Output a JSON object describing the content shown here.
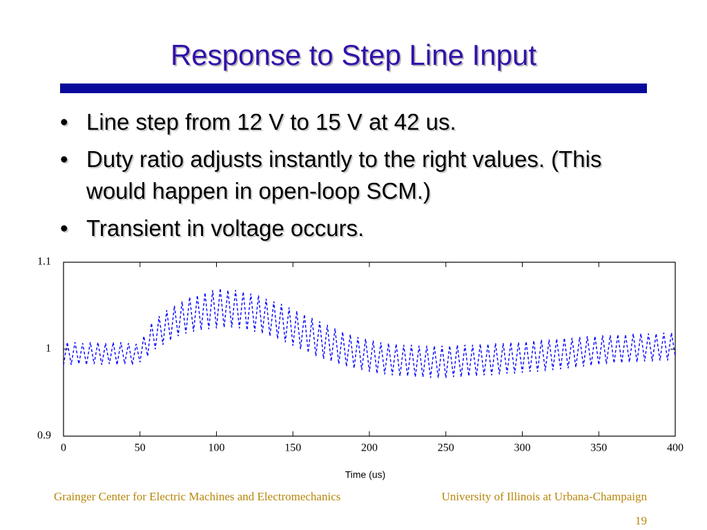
{
  "slide": {
    "title": "Response to Step Line Input",
    "bullets": [
      "Line step from 12 V to 15 V at 42 us.",
      "Duty ratio adjusts instantly to the right values. (This would happen in open-loop SCM.)",
      "Transient in voltage occurs."
    ],
    "footer_left": "Grainger Center for Electric Machines and Electromechanics",
    "footer_right": "University of Illinois at Urbana-Champaign",
    "page_number": "19"
  },
  "chart_data": {
    "type": "line",
    "xlabel": "Time (us)",
    "color": "#0000ff",
    "line_style": "dashed",
    "xlim": [
      0,
      400
    ],
    "xticks": [
      0,
      50,
      100,
      150,
      200,
      250,
      300,
      350,
      400
    ],
    "ylim": [
      0.9,
      1.1
    ],
    "yticks": [
      0.9,
      1,
      1.1
    ],
    "x": [
      0,
      2.5,
      5,
      7.5,
      10,
      12.5,
      15,
      17.5,
      20,
      22.5,
      25,
      27.5,
      30,
      32.5,
      35,
      37.5,
      40,
      42.5,
      45,
      47.5,
      50,
      52.5,
      55,
      57.5,
      60,
      62.5,
      65,
      67.5,
      70,
      72.5,
      75,
      77.5,
      80,
      82.5,
      85,
      87.5,
      90,
      92.5,
      95,
      97.5,
      100,
      102.5,
      105,
      107.5,
      110,
      112.5,
      115,
      117.5,
      120,
      122.5,
      125,
      127.5,
      130,
      132.5,
      135,
      137.5,
      140,
      142.5,
      145,
      147.5,
      150,
      152.5,
      155,
      157.5,
      160,
      162.5,
      165,
      167.5,
      170,
      172.5,
      175,
      177.5,
      180,
      182.5,
      185,
      187.5,
      190,
      192.5,
      195,
      197.5,
      200,
      202.5,
      205,
      207.5,
      210,
      212.5,
      215,
      217.5,
      220,
      222.5,
      225,
      227.5,
      230,
      232.5,
      235,
      237.5,
      240,
      242.5,
      245,
      247.5,
      250,
      252.5,
      255,
      257.5,
      260,
      262.5,
      265,
      267.5,
      270,
      272.5,
      275,
      277.5,
      280,
      282.5,
      285,
      287.5,
      290,
      292.5,
      295,
      297.5,
      300,
      302.5,
      305,
      307.5,
      310,
      312.5,
      315,
      317.5,
      320,
      322.5,
      325,
      327.5,
      330,
      332.5,
      335,
      337.5,
      340,
      342.5,
      345,
      347.5,
      350,
      352.5,
      355,
      357.5,
      360,
      362.5,
      365,
      367.5,
      370,
      372.5,
      375,
      377.5,
      380,
      382.5,
      385,
      387.5,
      390,
      392.5,
      395,
      397.5,
      400
    ],
    "values": [
      0.982,
      1.008,
      0.982,
      1.008,
      0.983,
      1.007,
      0.982,
      1.008,
      0.983,
      1.008,
      0.982,
      1.007,
      0.983,
      1.008,
      0.982,
      1.008,
      0.983,
      1.007,
      0.982,
      1.006,
      0.985,
      1.015,
      0.992,
      1.03,
      1.0,
      1.038,
      1.005,
      1.045,
      1.01,
      1.05,
      1.015,
      1.055,
      1.018,
      1.06,
      1.02,
      1.062,
      1.022,
      1.065,
      1.023,
      1.068,
      1.024,
      1.07,
      1.025,
      1.068,
      1.025,
      1.068,
      1.024,
      1.066,
      1.022,
      1.064,
      1.02,
      1.062,
      1.018,
      1.058,
      1.015,
      1.055,
      1.012,
      1.052,
      1.008,
      1.048,
      1.004,
      1.044,
      1.0,
      1.04,
      0.996,
      1.036,
      0.992,
      1.032,
      0.989,
      1.028,
      0.986,
      1.024,
      0.983,
      1.02,
      0.98,
      1.017,
      0.978,
      1.014,
      0.976,
      1.012,
      0.974,
      1.01,
      0.972,
      1.008,
      0.971,
      1.007,
      0.97,
      1.006,
      0.969,
      1.005,
      0.969,
      1.005,
      0.968,
      1.004,
      0.968,
      1.004,
      0.967,
      1.004,
      0.967,
      1.004,
      0.967,
      1.004,
      0.968,
      1.005,
      0.968,
      1.005,
      0.969,
      1.005,
      0.969,
      1.006,
      0.97,
      1.006,
      0.97,
      1.007,
      0.971,
      1.007,
      0.972,
      1.008,
      0.972,
      1.008,
      0.973,
      1.009,
      0.974,
      1.01,
      0.974,
      1.011,
      0.975,
      1.011,
      0.976,
      1.012,
      0.977,
      1.013,
      0.978,
      1.013,
      0.979,
      1.014,
      0.98,
      1.015,
      0.981,
      1.015,
      0.982,
      1.016,
      0.983,
      1.016,
      0.984,
      1.017,
      0.984,
      1.017,
      0.985,
      1.018,
      0.985,
      1.018,
      0.986,
      1.018,
      0.986,
      1.018,
      0.987,
      1.019,
      0.987,
      1.019,
      0.992
    ]
  }
}
